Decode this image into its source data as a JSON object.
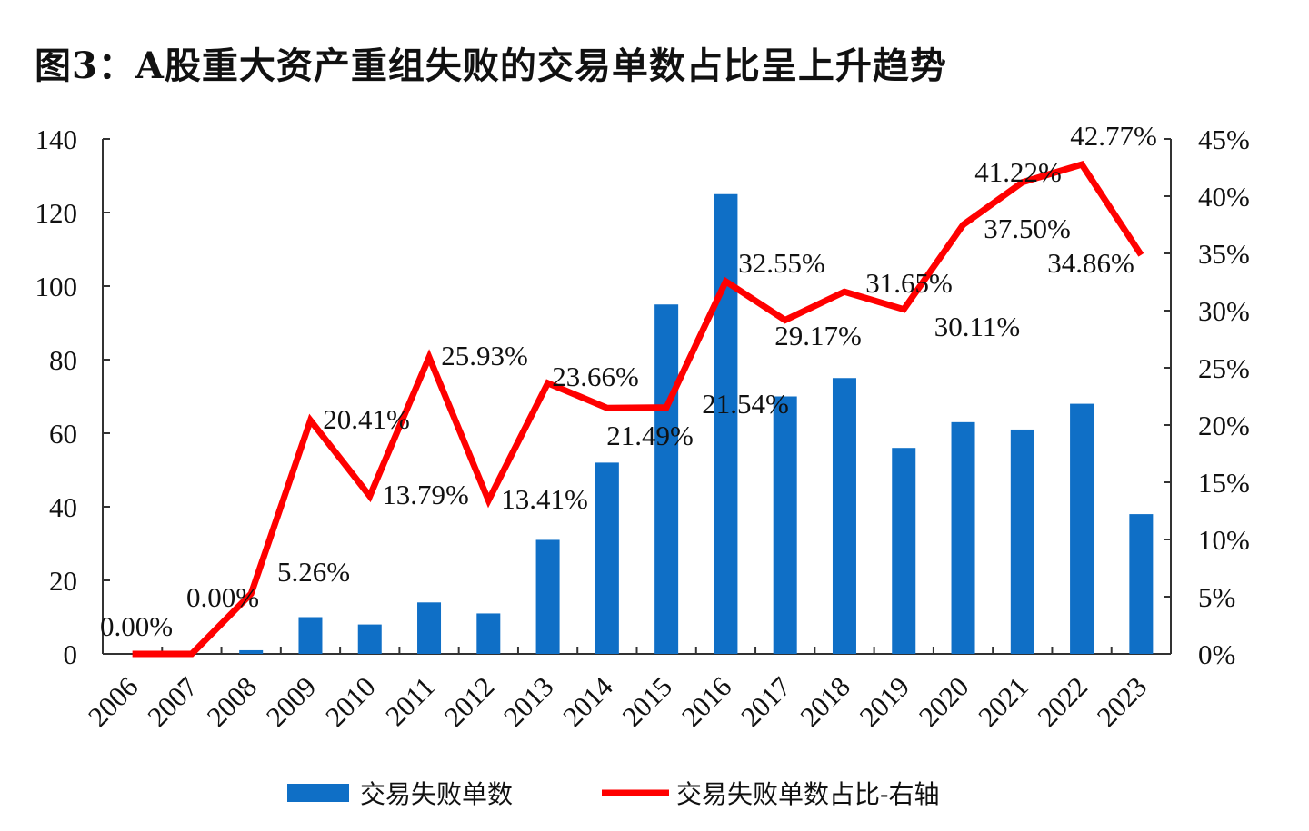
{
  "title": "图3：A股重大资产重组失败的交易单数占比呈上升趋势",
  "chart_data": {
    "type": "bar+line",
    "title": "图3：A股重大资产重组失败的交易单数占比呈上升趋势",
    "categories": [
      "2006",
      "2007",
      "2008",
      "2009",
      "2010",
      "2011",
      "2012",
      "2013",
      "2014",
      "2015",
      "2016",
      "2017",
      "2018",
      "2019",
      "2020",
      "2021",
      "2022",
      "2023"
    ],
    "series": [
      {
        "name": "交易失败单数",
        "type": "bar",
        "axis": "left",
        "color": "#0f6fc6",
        "values": [
          0,
          0,
          1,
          10,
          8,
          14,
          11,
          31,
          52,
          95,
          125,
          70,
          75,
          56,
          63,
          61,
          68,
          38
        ]
      },
      {
        "name": "交易失败单数占比-右轴",
        "type": "line",
        "axis": "right",
        "color": "#ff0000",
        "values": [
          0,
          0,
          5.26,
          20.41,
          13.79,
          25.93,
          13.41,
          23.66,
          21.49,
          21.54,
          32.55,
          29.17,
          31.65,
          30.11,
          37.5,
          41.22,
          42.77,
          34.86
        ],
        "labels": [
          "0.00%",
          "0.00%",
          "5.26%",
          "20.41%",
          "13.79%",
          "25.93%",
          "13.41%",
          "23.66%",
          "21.49%",
          "21.54%",
          "32.55%",
          "29.17%",
          "31.65%",
          "30.11%",
          "37.50%",
          "41.22%",
          "42.77%",
          "34.86%"
        ]
      }
    ],
    "y_left": {
      "range": [
        0,
        140
      ],
      "ticks": [
        "0",
        "20",
        "40",
        "60",
        "80",
        "100",
        "120",
        "140"
      ]
    },
    "y_right": {
      "range": [
        0,
        45
      ],
      "ticks": [
        "0%",
        "5%",
        "10%",
        "15%",
        "20%",
        "25%",
        "30%",
        "35%",
        "40%",
        "45%"
      ]
    },
    "grid": false,
    "legend": "bottom"
  }
}
